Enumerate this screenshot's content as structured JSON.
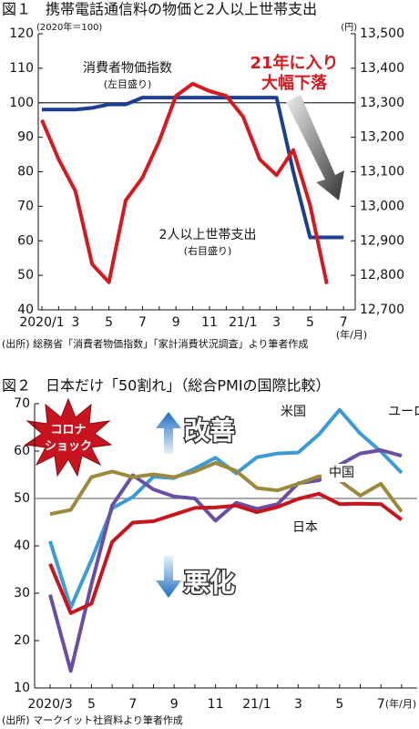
{
  "chart_data": [
    {
      "type": "line",
      "title": "図１　携帯電話通信料の物価と2人以上世帯支出",
      "y_label": "(2020年＝100)",
      "y2_label": "(円)",
      "x_label": "(年/月)",
      "categories": [
        "2020/1",
        null,
        "3",
        null,
        "5",
        null,
        "7",
        null,
        "9",
        null,
        "11",
        null,
        "21/1",
        null,
        "3",
        null,
        "5",
        null,
        "7"
      ],
      "series": [
        {
          "name": "消費者物価指数",
          "color": "#1c3f94",
          "values": [
            98,
            98,
            98,
            98.5,
            99.5,
            99.5,
            101.5,
            101.5,
            101.5,
            101.5,
            101.5,
            101.5,
            101.5,
            101.5,
            101.5,
            80,
            61,
            61,
            61
          ]
        },
        {
          "name": "2人以上世帯支出",
          "color": "#d7191f",
          "axis": "y2",
          "values": [
            13250,
            13136,
            13044,
            12832,
            12780,
            13017,
            13083,
            13189,
            13320,
            13355,
            13334,
            13320,
            13260,
            13136,
            13090,
            13163,
            13004,
            12775,
            null
          ]
        }
      ],
      "ylim": [
        40,
        120
      ],
      "yticks": [
        40,
        50,
        60,
        70,
        80,
        90,
        100,
        110,
        120
      ],
      "y2lim": [
        12700,
        13500
      ],
      "y2ticks": [
        {
          "value": 12700,
          "label": "12,700"
        },
        {
          "value": 12800,
          "label": "12,800"
        },
        {
          "value": 12900,
          "label": "12,900"
        },
        {
          "value": 13000,
          "label": "13,000"
        },
        {
          "value": 13100,
          "label": "13,100"
        },
        {
          "value": 13200,
          "label": "13,200"
        },
        {
          "value": 13300,
          "label": "13,300"
        },
        {
          "value": 13400,
          "label": "13,400"
        },
        {
          "value": 13500,
          "label": "13,500"
        }
      ],
      "reference_line": 100,
      "annotations": [
        "(左目盛り)",
        "(右目盛り)",
        "21年に入り",
        "大幅下落"
      ],
      "source": "(出所) 総務省「消費者物価指数」「家計消費状況調査」より筆者作成"
    },
    {
      "type": "line",
      "title": "図２　日本だけ「50割れ」（総合PMIの国際比較）",
      "x_label": "(年/月)",
      "categories": [
        "2020/3",
        null,
        "5",
        null,
        "7",
        null,
        "9",
        null,
        "11",
        null,
        "21/1",
        null,
        "3",
        null,
        "5",
        null,
        "7",
        null
      ],
      "series": [
        {
          "name": "米国",
          "color": "#3b9ad8",
          "values": [
            41,
            27,
            37,
            47.9,
            50.3,
            54.6,
            54.3,
            56.3,
            58.6,
            55.3,
            58.7,
            59.5,
            59.7,
            63.5,
            68.7,
            63.7,
            59.9,
            55.4
          ]
        },
        {
          "name": "ユーロ圏",
          "color": "#6a4ea3",
          "values": [
            29.7,
            13.6,
            31.9,
            48.5,
            54.9,
            51.9,
            50.4,
            50,
            45.3,
            49.1,
            47.8,
            48.8,
            53.2,
            53.8,
            57.1,
            59.5,
            60.2,
            59
          ]
        },
        {
          "name": "中国",
          "color": "#9c8a3c",
          "values": [
            46.7,
            47.6,
            54.5,
            55.7,
            54.5,
            55.1,
            54.5,
            55.7,
            57.5,
            55.8,
            52.2,
            51.7,
            53.1,
            54.7,
            53.8,
            50.6,
            53.1,
            47.2
          ]
        },
        {
          "name": "日本",
          "color": "#c8141e",
          "values": [
            36.2,
            25.8,
            27.8,
            40.8,
            44.9,
            45.2,
            46.6,
            48,
            48.1,
            48.5,
            47.1,
            48.2,
            49.9,
            51,
            48.8,
            48.9,
            48.8,
            45.5
          ]
        }
      ],
      "ylim": [
        10,
        70
      ],
      "yticks": [
        10,
        20,
        30,
        40,
        50,
        60,
        70
      ],
      "reference_line": 50,
      "annotations": [
        "コロナ",
        "ショック",
        "改善",
        "悪化"
      ],
      "source": "(出所) マークイット社資料より筆者作成"
    }
  ]
}
